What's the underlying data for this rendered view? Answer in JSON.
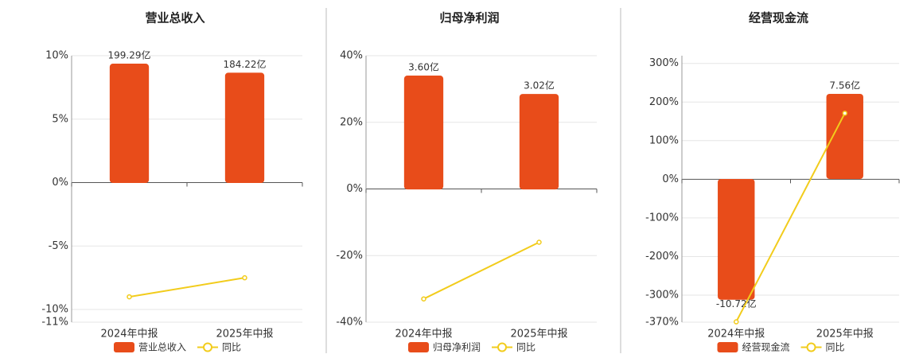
{
  "chart_data": [
    {
      "type": "bar",
      "title": "营业总收入",
      "categories": [
        "2024年中报",
        "2025年中报"
      ],
      "series": [
        {
          "name": "营业总收入",
          "type": "bar",
          "axis": "y2",
          "color": "#e84c1a",
          "values": [
            199.29,
            184.22
          ],
          "value_labels": [
            "199.29亿",
            "184.22亿"
          ]
        },
        {
          "name": "同比",
          "type": "line",
          "axis": "y",
          "color": "#f2cc1c",
          "values": [
            -9.0,
            -7.5
          ]
        }
      ],
      "ylim": [
        -11,
        10
      ],
      "yticks": [
        {
          "value": 10,
          "label": "10%"
        },
        {
          "value": 5,
          "label": "5%"
        },
        {
          "value": 0,
          "label": "0%"
        },
        {
          "value": -5,
          "label": "-5%"
        },
        {
          "value": -10,
          "label": "-10%"
        },
        {
          "value": -11,
          "label": "-11%"
        }
      ],
      "y2lim": [
        -232.5,
        212.6
      ],
      "grid": true
    },
    {
      "type": "bar",
      "title": "归母净利润",
      "categories": [
        "2024年中报",
        "2025年中报"
      ],
      "series": [
        {
          "name": "归母净利润",
          "type": "bar",
          "axis": "y2",
          "color": "#e84c1a",
          "values": [
            3.6,
            3.02
          ],
          "value_labels": [
            "3.60亿",
            "3.02亿"
          ]
        },
        {
          "name": "同比",
          "type": "line",
          "axis": "y",
          "color": "#f2cc1c",
          "values": [
            -33,
            -16
          ]
        }
      ],
      "ylim": [
        -40,
        40
      ],
      "yticks": [
        {
          "value": 40,
          "label": "40%"
        },
        {
          "value": 20,
          "label": "20%"
        },
        {
          "value": 0,
          "label": "0%"
        },
        {
          "value": -20,
          "label": "-20%"
        },
        {
          "value": -40,
          "label": "-40%"
        }
      ],
      "y2lim": [
        -4.2,
        4.23
      ],
      "grid": true
    },
    {
      "type": "bar",
      "title": "经营现金流",
      "categories": [
        "2024年中报",
        "2025年中报"
      ],
      "series": [
        {
          "name": "经营现金流",
          "type": "bar",
          "axis": "y2",
          "color": "#e84c1a",
          "values": [
            -10.72,
            7.56
          ],
          "value_labels": [
            "-10.72亿",
            "7.56亿"
          ]
        },
        {
          "name": "同比",
          "type": "line",
          "axis": "y",
          "color": "#f2cc1c",
          "values": [
            -369,
            171
          ]
        }
      ],
      "ylim": [
        -370,
        320
      ],
      "yticks": [
        {
          "value": 300,
          "label": "300%"
        },
        {
          "value": 200,
          "label": "200%"
        },
        {
          "value": 100,
          "label": "100%"
        },
        {
          "value": 0,
          "label": "0%"
        },
        {
          "value": -100,
          "label": "-100%"
        },
        {
          "value": -200,
          "label": "-200%"
        },
        {
          "value": -300,
          "label": "-300%"
        },
        {
          "value": -370,
          "label": "-370%"
        }
      ],
      "y2lim": [
        -12.72,
        10.95
      ],
      "grid": true
    }
  ]
}
